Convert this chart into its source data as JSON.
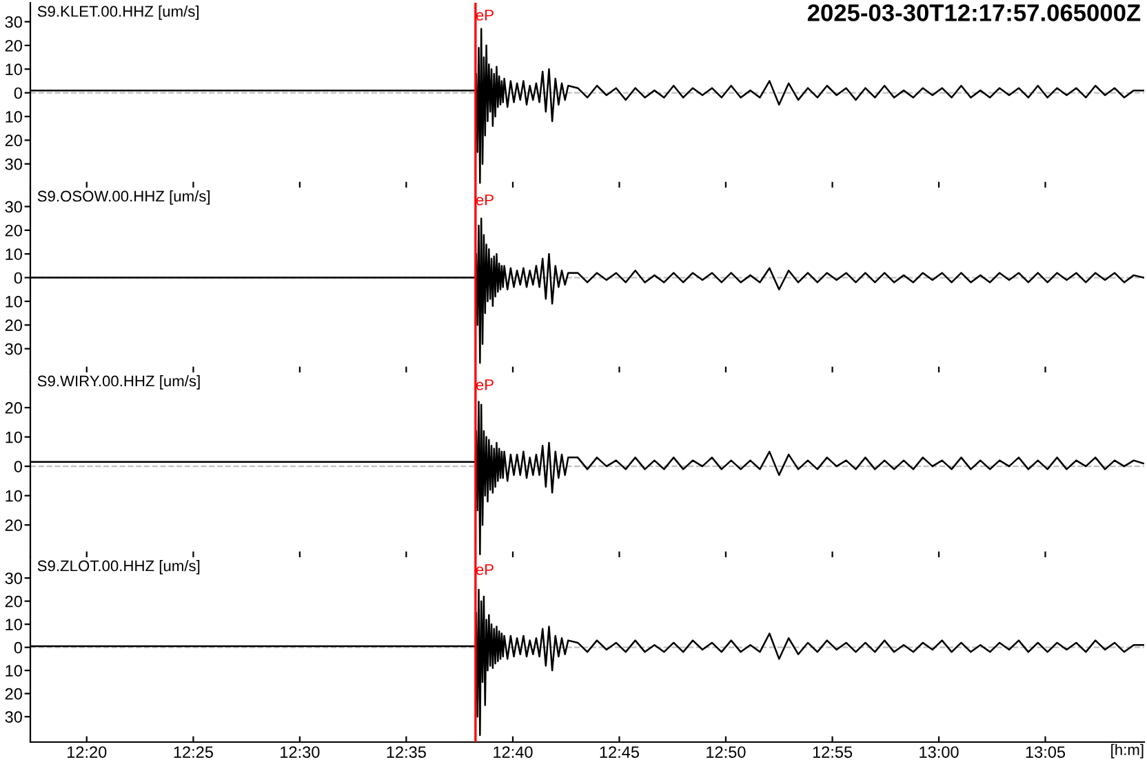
{
  "chart_data": [
    {
      "type": "line",
      "title": "2025-03-30T12:17:57.065000Z",
      "annotations": [
        "S9.KLET.00.HHZ [um/s]"
      ],
      "tick_labels": "y",
      "grid": false,
      "marker": "none",
      "line_style": "solid",
      "xlim": [
        12.2892,
        13.1607
      ],
      "ylim": [
        -40,
        38
      ],
      "xticks": [
        {
          "value": 12.3333,
          "label": null
        },
        {
          "value": 12.4167,
          "label": null
        },
        {
          "value": 12.5,
          "label": null
        },
        {
          "value": 12.5833,
          "label": null
        },
        {
          "value": 12.6667,
          "label": null
        },
        {
          "value": 12.75,
          "label": null
        },
        {
          "value": 12.8333,
          "label": null
        },
        {
          "value": 12.9167,
          "label": null
        },
        {
          "value": 13.0,
          "label": null
        },
        {
          "value": 13.0833,
          "label": null
        }
      ],
      "yticks": [
        {
          "value": -30,
          "label": "30"
        },
        {
          "value": -20,
          "label": "20"
        },
        {
          "value": -10,
          "label": "10"
        },
        0,
        10,
        20,
        30
      ],
      "ref_lines": [
        {
          "axis": "y",
          "value": 0,
          "label": null,
          "color": "#c0c0c0",
          "line_style": "dashed"
        },
        {
          "axis": "x",
          "value": 12.6375,
          "label": "eP",
          "color": "#ff0000",
          "line_style": "solid"
        }
      ],
      "x": [
        12.2892,
        12.35,
        12.45,
        12.55,
        12.6375,
        12.638,
        12.639,
        12.64,
        12.641,
        12.642,
        12.643,
        12.644,
        12.645,
        12.646,
        12.647,
        12.648,
        12.649,
        12.65,
        12.651,
        12.652,
        12.653,
        12.654,
        12.655,
        12.656,
        12.657,
        12.658,
        12.659,
        12.66,
        12.6625,
        12.665,
        12.6675,
        12.67,
        12.6725,
        12.675,
        12.6775,
        12.68,
        12.6825,
        12.685,
        12.6875,
        12.69,
        12.6925,
        12.695,
        12.6975,
        12.7,
        12.7025,
        12.705,
        12.7075,
        12.71,
        12.7175,
        12.725,
        12.7325,
        12.74,
        12.7475,
        12.755,
        12.7625,
        12.77,
        12.7775,
        12.785,
        12.7925,
        12.8,
        12.8075,
        12.815,
        12.8225,
        12.83,
        12.8375,
        12.845,
        12.8525,
        12.86,
        12.8675,
        12.875,
        12.8825,
        12.89,
        12.8975,
        12.905,
        12.9125,
        12.92,
        12.9275,
        12.935,
        12.9425,
        12.95,
        12.9575,
        12.965,
        12.9725,
        12.98,
        12.9875,
        12.995,
        13.0025,
        13.01,
        13.0175,
        13.025,
        13.0325,
        13.04,
        13.0475,
        13.055,
        13.0625,
        13.07,
        13.0775,
        13.085,
        13.0925,
        13.1,
        13.1075,
        13.115,
        13.1225,
        13.13,
        13.1375,
        13.145,
        13.1525,
        13.16
      ],
      "series": [
        {
          "color": "#000000",
          "values": [
            1,
            1,
            1,
            1,
            1,
            8,
            -25,
            19,
            -38,
            27,
            -30,
            15,
            -18,
            20,
            -12,
            12,
            -8,
            10,
            -14,
            8,
            -10,
            11,
            -6,
            7,
            -5,
            5,
            -4,
            6,
            -6,
            5,
            -4,
            4,
            -3,
            5,
            -5,
            3,
            -3,
            4,
            -4,
            9,
            -8,
            10,
            -12,
            6,
            -5,
            4,
            -3,
            3,
            2,
            -2,
            3,
            -1,
            2,
            -3,
            2,
            -2,
            1,
            -2,
            3,
            -2,
            2,
            -1,
            2,
            -2,
            3,
            -2,
            1,
            -2,
            5,
            -5,
            4,
            -3,
            2,
            -2,
            3,
            -1,
            2,
            -3,
            2,
            -2,
            3,
            -2,
            1,
            -2,
            2,
            -1,
            2,
            -2,
            3,
            -2,
            1,
            -2,
            2,
            -1,
            2,
            -2,
            3,
            -2,
            2,
            -1,
            2,
            -2,
            3,
            -1,
            2,
            -2,
            1,
            1
          ]
        }
      ]
    },
    {
      "type": "line",
      "annotations": [
        "S9.OSOW.00.HHZ [um/s]"
      ],
      "tick_labels": "y",
      "grid": false,
      "marker": "none",
      "line_style": "solid",
      "xlim": [
        12.2892,
        13.1607
      ],
      "ylim": [
        -40,
        38
      ],
      "xticks": [
        {
          "value": 12.3333,
          "label": null
        },
        {
          "value": 12.4167,
          "label": null
        },
        {
          "value": 12.5,
          "label": null
        },
        {
          "value": 12.5833,
          "label": null
        },
        {
          "value": 12.6667,
          "label": null
        },
        {
          "value": 12.75,
          "label": null
        },
        {
          "value": 12.8333,
          "label": null
        },
        {
          "value": 12.9167,
          "label": null
        },
        {
          "value": 13.0,
          "label": null
        },
        {
          "value": 13.0833,
          "label": null
        }
      ],
      "yticks": [
        {
          "value": -30,
          "label": "30"
        },
        {
          "value": -20,
          "label": "20"
        },
        {
          "value": -10,
          "label": "10"
        },
        0,
        10,
        20,
        30
      ],
      "ref_lines": [
        {
          "axis": "y",
          "value": 0,
          "label": null,
          "color": "#c0c0c0",
          "line_style": "dashed"
        },
        {
          "axis": "x",
          "value": 12.6375,
          "label": "eP",
          "color": "#ff0000",
          "line_style": "solid"
        }
      ],
      "x": [
        12.2892,
        12.35,
        12.45,
        12.55,
        12.6375,
        12.638,
        12.639,
        12.64,
        12.641,
        12.642,
        12.643,
        12.644,
        12.645,
        12.646,
        12.647,
        12.648,
        12.649,
        12.65,
        12.651,
        12.652,
        12.653,
        12.654,
        12.655,
        12.656,
        12.657,
        12.658,
        12.659,
        12.66,
        12.6625,
        12.665,
        12.6675,
        12.67,
        12.6725,
        12.675,
        12.6775,
        12.68,
        12.6825,
        12.685,
        12.6875,
        12.69,
        12.6925,
        12.695,
        12.6975,
        12.7,
        12.7025,
        12.705,
        12.7075,
        12.71,
        12.7175,
        12.725,
        12.7325,
        12.74,
        12.7475,
        12.755,
        12.7625,
        12.77,
        12.7775,
        12.785,
        12.7925,
        12.8,
        12.8075,
        12.815,
        12.8225,
        12.83,
        12.8375,
        12.845,
        12.8525,
        12.86,
        12.8675,
        12.875,
        12.8825,
        12.89,
        12.8975,
        12.905,
        12.9125,
        12.92,
        12.9275,
        12.935,
        12.9425,
        12.95,
        12.9575,
        12.965,
        12.9725,
        12.98,
        12.9875,
        12.995,
        13.0025,
        13.01,
        13.0175,
        13.025,
        13.0325,
        13.04,
        13.0475,
        13.055,
        13.0625,
        13.07,
        13.0775,
        13.085,
        13.0925,
        13.1,
        13.1075,
        13.115,
        13.1225,
        13.13,
        13.1375,
        13.145,
        13.1525,
        13.16
      ],
      "series": [
        {
          "color": "#000000",
          "values": [
            0,
            0,
            0,
            0,
            0,
            10,
            -20,
            22,
            -36,
            25,
            -28,
            18,
            -15,
            14,
            -10,
            12,
            -9,
            8,
            -12,
            9,
            -8,
            10,
            -6,
            6,
            -5,
            5,
            -4,
            5,
            -5,
            4,
            -4,
            3,
            -3,
            4,
            -4,
            3,
            -3,
            5,
            -4,
            8,
            -9,
            10,
            -11,
            5,
            -4,
            3,
            -3,
            2,
            2,
            -2,
            2,
            -1,
            2,
            -2,
            3,
            -2,
            1,
            -2,
            2,
            -2,
            2,
            -1,
            2,
            -2,
            2,
            -2,
            1,
            -2,
            4,
            -5,
            3,
            -2,
            2,
            -2,
            2,
            -1,
            2,
            -2,
            2,
            -2,
            2,
            -2,
            1,
            -2,
            2,
            -1,
            2,
            -2,
            2,
            -2,
            1,
            -2,
            2,
            -1,
            2,
            -2,
            2,
            -2,
            2,
            -1,
            2,
            -2,
            2,
            -1,
            2,
            -2,
            1,
            0
          ]
        }
      ]
    },
    {
      "type": "line",
      "annotations": [
        "S9.WIRY.00.HHZ [um/s]"
      ],
      "tick_labels": "y",
      "grid": false,
      "marker": "none",
      "line_style": "solid",
      "xlim": [
        12.2892,
        13.1607
      ],
      "ylim": [
        -31,
        32
      ],
      "xticks": [
        {
          "value": 12.3333,
          "label": null
        },
        {
          "value": 12.4167,
          "label": null
        },
        {
          "value": 12.5,
          "label": null
        },
        {
          "value": 12.5833,
          "label": null
        },
        {
          "value": 12.6667,
          "label": null
        },
        {
          "value": 12.75,
          "label": null
        },
        {
          "value": 12.8333,
          "label": null
        },
        {
          "value": 12.9167,
          "label": null
        },
        {
          "value": 13.0,
          "label": null
        },
        {
          "value": 13.0833,
          "label": null
        }
      ],
      "yticks": [
        {
          "value": -20,
          "label": "20"
        },
        {
          "value": -10,
          "label": "10"
        },
        0,
        10,
        20
      ],
      "ref_lines": [
        {
          "axis": "y",
          "value": 0,
          "label": null,
          "color": "#c0c0c0",
          "line_style": "dashed"
        },
        {
          "axis": "x",
          "value": 12.6375,
          "label": "eP",
          "color": "#ff0000",
          "line_style": "solid"
        }
      ],
      "x": [
        12.2892,
        12.35,
        12.45,
        12.55,
        12.6375,
        12.638,
        12.639,
        12.64,
        12.641,
        12.642,
        12.643,
        12.644,
        12.645,
        12.646,
        12.647,
        12.648,
        12.649,
        12.65,
        12.651,
        12.652,
        12.653,
        12.654,
        12.655,
        12.656,
        12.657,
        12.658,
        12.659,
        12.66,
        12.6625,
        12.665,
        12.6675,
        12.67,
        12.6725,
        12.675,
        12.6775,
        12.68,
        12.6825,
        12.685,
        12.6875,
        12.69,
        12.6925,
        12.695,
        12.6975,
        12.7,
        12.7025,
        12.705,
        12.7075,
        12.71,
        12.7175,
        12.725,
        12.7325,
        12.74,
        12.7475,
        12.755,
        12.7625,
        12.77,
        12.7775,
        12.785,
        12.7925,
        12.8,
        12.8075,
        12.815,
        12.8225,
        12.83,
        12.8375,
        12.845,
        12.8525,
        12.86,
        12.8675,
        12.875,
        12.8825,
        12.89,
        12.8975,
        12.905,
        12.9125,
        12.92,
        12.9275,
        12.935,
        12.9425,
        12.95,
        12.9575,
        12.965,
        12.9725,
        12.98,
        12.9875,
        12.995,
        13.0025,
        13.01,
        13.0175,
        13.025,
        13.0325,
        13.04,
        13.0475,
        13.055,
        13.0625,
        13.07,
        13.0775,
        13.085,
        13.0925,
        13.1,
        13.1075,
        13.115,
        13.1225,
        13.13,
        13.1375,
        13.145,
        13.1525,
        13.16
      ],
      "series": [
        {
          "color": "#000000",
          "values": [
            1.5,
            1.5,
            1.5,
            1.5,
            1.5,
            12,
            -15,
            22,
            -30,
            21,
            -20,
            12,
            -10,
            10,
            -12,
            9,
            -8,
            7,
            -9,
            6,
            -7,
            8,
            -5,
            6,
            -4,
            5,
            -4,
            5,
            -5,
            4,
            -3,
            4,
            -3,
            5,
            -4,
            3,
            -3,
            4,
            -3,
            7,
            -7,
            8,
            -9,
            5,
            -4,
            4,
            -3,
            3,
            3,
            -1,
            3,
            0,
            2,
            -1,
            3,
            -1,
            2,
            -1,
            3,
            -1,
            2,
            0,
            3,
            -1,
            2,
            -1,
            2,
            -1,
            5,
            -3,
            4,
            -1,
            2,
            -1,
            3,
            0,
            2,
            -1,
            3,
            -1,
            2,
            -1,
            2,
            -1,
            3,
            0,
            2,
            -1,
            3,
            -1,
            2,
            -1,
            2,
            0,
            3,
            -1,
            2,
            -1,
            3,
            -1,
            2,
            0,
            3,
            -1,
            2,
            0,
            2,
            1
          ]
        }
      ]
    },
    {
      "type": "line",
      "annotations": [
        "S9.ZLOT.00.HHZ [um/s]"
      ],
      "xlabel": "[h:m]",
      "grid": false,
      "marker": "none",
      "line_style": "solid",
      "xlim": [
        12.2892,
        13.1607
      ],
      "ylim": [
        -41,
        39
      ],
      "xticks": [
        {
          "value": 12.3333,
          "label": "12:20"
        },
        {
          "value": 12.4167,
          "label": "12:25"
        },
        {
          "value": 12.5,
          "label": "12:30"
        },
        {
          "value": 12.5833,
          "label": "12:35"
        },
        {
          "value": 12.6667,
          "label": "12:40"
        },
        {
          "value": 12.75,
          "label": "12:45"
        },
        {
          "value": 12.8333,
          "label": "12:50"
        },
        {
          "value": 12.9167,
          "label": "12:55"
        },
        {
          "value": 13.0,
          "label": "13:00"
        },
        {
          "value": 13.0833,
          "label": "13:05"
        }
      ],
      "yticks": [
        {
          "value": -30,
          "label": "30"
        },
        {
          "value": -20,
          "label": "20"
        },
        {
          "value": -10,
          "label": "10"
        },
        0,
        10,
        20,
        30
      ],
      "ref_lines": [
        {
          "axis": "y",
          "value": 0,
          "label": null,
          "color": "#c0c0c0",
          "line_style": "dashed"
        },
        {
          "axis": "x",
          "value": 12.6375,
          "label": "eP",
          "color": "#ff0000",
          "line_style": "solid"
        }
      ],
      "x": [
        12.2892,
        12.35,
        12.45,
        12.55,
        12.6375,
        12.638,
        12.639,
        12.64,
        12.641,
        12.642,
        12.643,
        12.644,
        12.645,
        12.646,
        12.647,
        12.648,
        12.649,
        12.65,
        12.651,
        12.652,
        12.653,
        12.654,
        12.655,
        12.656,
        12.657,
        12.658,
        12.659,
        12.66,
        12.6625,
        12.665,
        12.6675,
        12.67,
        12.6725,
        12.675,
        12.6775,
        12.68,
        12.6825,
        12.685,
        12.6875,
        12.69,
        12.6925,
        12.695,
        12.6975,
        12.7,
        12.7025,
        12.705,
        12.7075,
        12.71,
        12.7175,
        12.725,
        12.7325,
        12.74,
        12.7475,
        12.755,
        12.7625,
        12.77,
        12.7775,
        12.785,
        12.7925,
        12.8,
        12.8075,
        12.815,
        12.8225,
        12.83,
        12.8375,
        12.845,
        12.8525,
        12.86,
        12.8675,
        12.875,
        12.8825,
        12.89,
        12.8975,
        12.905,
        12.9125,
        12.92,
        12.9275,
        12.935,
        12.9425,
        12.95,
        12.9575,
        12.965,
        12.9725,
        12.98,
        12.9875,
        12.995,
        13.0025,
        13.01,
        13.0175,
        13.025,
        13.0325,
        13.04,
        13.0475,
        13.055,
        13.0625,
        13.07,
        13.0775,
        13.085,
        13.0925,
        13.1,
        13.1075,
        13.115,
        13.1225,
        13.13,
        13.1375,
        13.145,
        13.1525,
        13.16
      ],
      "series": [
        {
          "color": "#000000",
          "values": [
            0.5,
            0.5,
            0.5,
            0.5,
            0.5,
            15,
            -30,
            25,
            -38,
            20,
            -15,
            22,
            -25,
            12,
            -10,
            14,
            -8,
            10,
            -9,
            8,
            -7,
            9,
            -6,
            7,
            -5,
            6,
            -4,
            5,
            -5,
            5,
            -4,
            4,
            -3,
            5,
            -4,
            3,
            -3,
            4,
            -4,
            8,
            -8,
            9,
            -10,
            5,
            -4,
            4,
            -3,
            3,
            2,
            -2,
            3,
            -1,
            2,
            -2,
            3,
            -2,
            1,
            -2,
            2,
            -2,
            3,
            -1,
            2,
            -2,
            3,
            -2,
            1,
            -2,
            6,
            -5,
            4,
            -3,
            2,
            -2,
            3,
            -1,
            2,
            -2,
            2,
            -2,
            3,
            -2,
            1,
            -2,
            2,
            -1,
            3,
            -2,
            2,
            -2,
            1,
            -2,
            2,
            -1,
            3,
            -2,
            2,
            -2,
            2,
            -1,
            2,
            -2,
            3,
            -1,
            2,
            -2,
            1,
            1
          ]
        }
      ]
    }
  ]
}
